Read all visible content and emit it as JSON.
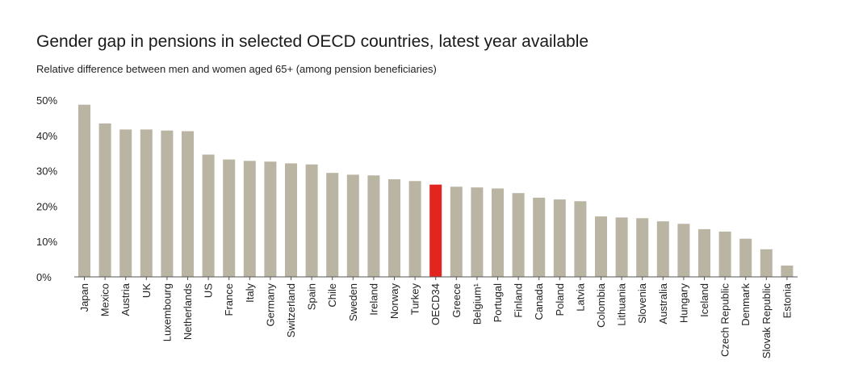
{
  "chart_data": {
    "type": "bar",
    "title": "Gender gap in pensions in selected OECD countries, latest year available",
    "subtitle": "Relative difference between men and women aged 65+ (among pension beneficiaries)",
    "xlabel": "",
    "ylabel": "",
    "ylim": [
      0,
      50
    ],
    "y_ticks": [
      "0%",
      "10%",
      "20%",
      "30%",
      "40%",
      "50%"
    ],
    "y_tick_values": [
      0,
      10,
      20,
      30,
      40,
      50
    ],
    "grid": false,
    "categories": [
      "Japan",
      "Mexico",
      "Austria",
      "UK",
      "Luxembourg",
      "Netherlands",
      "US",
      "France",
      "Italy",
      "Germany",
      "Switzerland",
      "Spain",
      "Chile",
      "Sweden",
      "Ireland",
      "Norway",
      "Turkey",
      "OECD34",
      "Greece",
      "Belgium¹",
      "Portugal",
      "Finland",
      "Canada",
      "Poland",
      "Latvia",
      "Colombia",
      "Lithuania",
      "Slovenia",
      "Australia",
      "Hungary",
      "Iceland",
      "Czech Republic",
      "Denmark",
      "Slovak Republic",
      "Estonia"
    ],
    "values": [
      48.7,
      43.4,
      41.7,
      41.7,
      41.4,
      41.2,
      34.6,
      33.2,
      32.8,
      32.6,
      32.1,
      31.8,
      29.4,
      28.9,
      28.7,
      27.6,
      27.1,
      26.1,
      25.5,
      25.3,
      25.0,
      23.7,
      22.4,
      21.9,
      21.4,
      17.1,
      16.8,
      16.6,
      15.7,
      15.0,
      13.5,
      12.8,
      10.8,
      7.8,
      3.2
    ],
    "bar_color": "#bab5a3",
    "highlight_category": "OECD34",
    "highlight_color": "#e3251f"
  }
}
